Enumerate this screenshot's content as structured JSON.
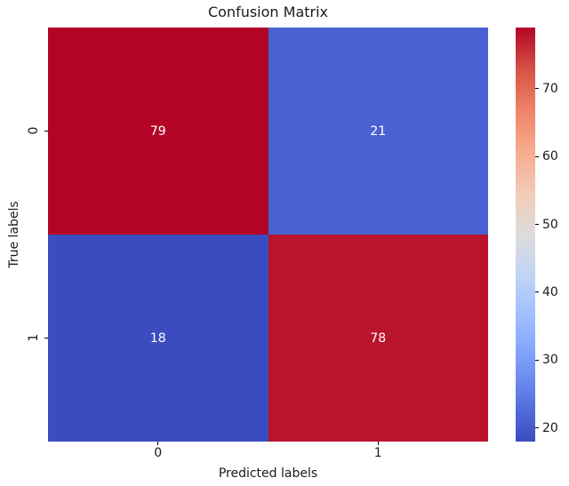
{
  "figure": {
    "background": "#ffffff",
    "text_color": "#1a1a1a"
  },
  "chart_data": {
    "type": "heatmap",
    "title": "Confusion Matrix",
    "xlabel": "Predicted labels",
    "ylabel": "True labels",
    "x_tick_labels": [
      "0",
      "1"
    ],
    "y_tick_labels": [
      "0",
      "1"
    ],
    "matrix": [
      [
        79,
        21
      ],
      [
        18,
        78
      ]
    ],
    "cell_colors": [
      [
        "#b40426",
        "#4961d3"
      ],
      [
        "#3b4cc0",
        "#ba142d"
      ]
    ],
    "annotation_color": "#ffffff",
    "grid": false,
    "colormap": "coolwarm",
    "colorbar": {
      "vmin": 18,
      "vmax": 79,
      "ticks": [
        20,
        30,
        40,
        50,
        60,
        70
      ],
      "legend_position": "right",
      "gradient_stops": [
        {
          "t": 0.0,
          "color": "#3b4cc0"
        },
        {
          "t": 0.1,
          "color": "#5977e3"
        },
        {
          "t": 0.2,
          "color": "#7b9ff9"
        },
        {
          "t": 0.3,
          "color": "#9ebeff"
        },
        {
          "t": 0.4,
          "color": "#c0d4f5"
        },
        {
          "t": 0.5,
          "color": "#dddcdc"
        },
        {
          "t": 0.6,
          "color": "#f2cbb7"
        },
        {
          "t": 0.7,
          "color": "#f7ac8e"
        },
        {
          "t": 0.8,
          "color": "#ee8468"
        },
        {
          "t": 0.9,
          "color": "#d65244"
        },
        {
          "t": 1.0,
          "color": "#b40426"
        }
      ]
    }
  }
}
